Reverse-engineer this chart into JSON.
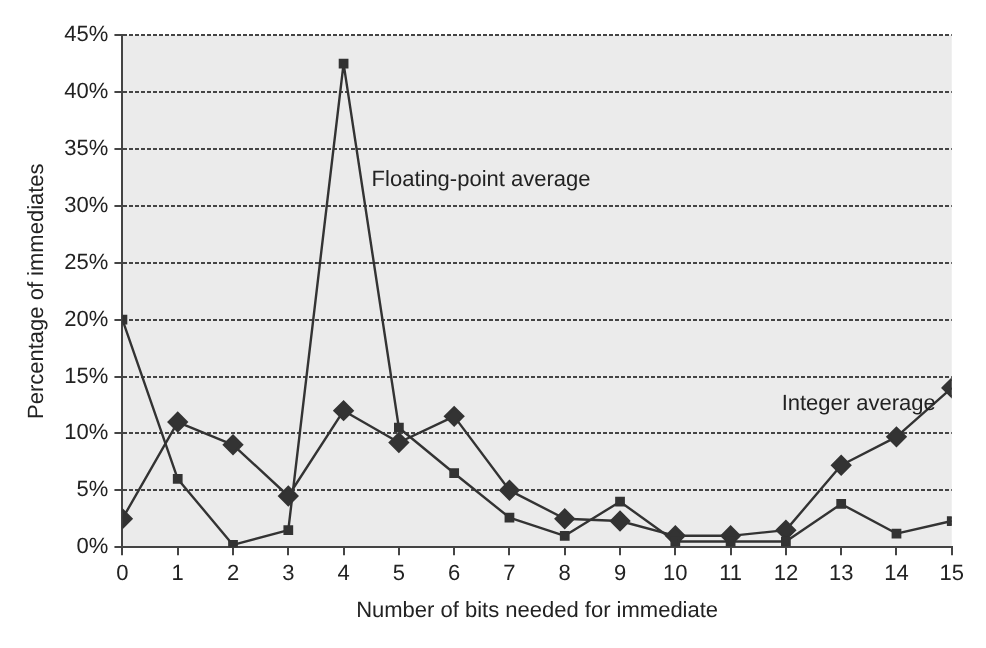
{
  "chart_data": {
    "type": "line",
    "xlabel": "Number of bits needed for immediate",
    "ylabel": "Percentage of immediates",
    "x": [
      0,
      1,
      2,
      3,
      4,
      5,
      6,
      7,
      8,
      9,
      10,
      11,
      12,
      13,
      14,
      15
    ],
    "series": [
      {
        "name": "Floating-point average",
        "color": "#333333",
        "marker": "square",
        "values": [
          20,
          6,
          0.2,
          1.5,
          42.5,
          10.5,
          6.5,
          2.6,
          1,
          4,
          0.5,
          0.5,
          0.5,
          3.8,
          1.2,
          2.3
        ]
      },
      {
        "name": "Integer average",
        "color": "#333333",
        "marker": "diamond",
        "values": [
          2.5,
          11,
          9,
          4.5,
          12,
          9.2,
          11.5,
          5,
          2.5,
          2.3,
          1,
          1,
          1.5,
          7.2,
          9.7,
          14
        ]
      }
    ],
    "xlim": [
      0,
      15
    ],
    "xticks": [
      0,
      1,
      2,
      3,
      4,
      5,
      6,
      7,
      8,
      9,
      10,
      11,
      12,
      13,
      14,
      15
    ],
    "ylim": [
      0,
      45
    ],
    "yticks": [
      {
        "value": 0,
        "label": "0%"
      },
      {
        "value": 5,
        "label": "5%"
      },
      {
        "value": 10,
        "label": "10%"
      },
      {
        "value": 15,
        "label": "15%"
      },
      {
        "value": 20,
        "label": "20%"
      },
      {
        "value": 25,
        "label": "25%"
      },
      {
        "value": 30,
        "label": "30%"
      },
      {
        "value": 35,
        "label": "35%"
      },
      {
        "value": 40,
        "label": "40%"
      },
      {
        "value": 45,
        "label": "45%"
      }
    ],
    "grid": "y",
    "legend": false
  }
}
